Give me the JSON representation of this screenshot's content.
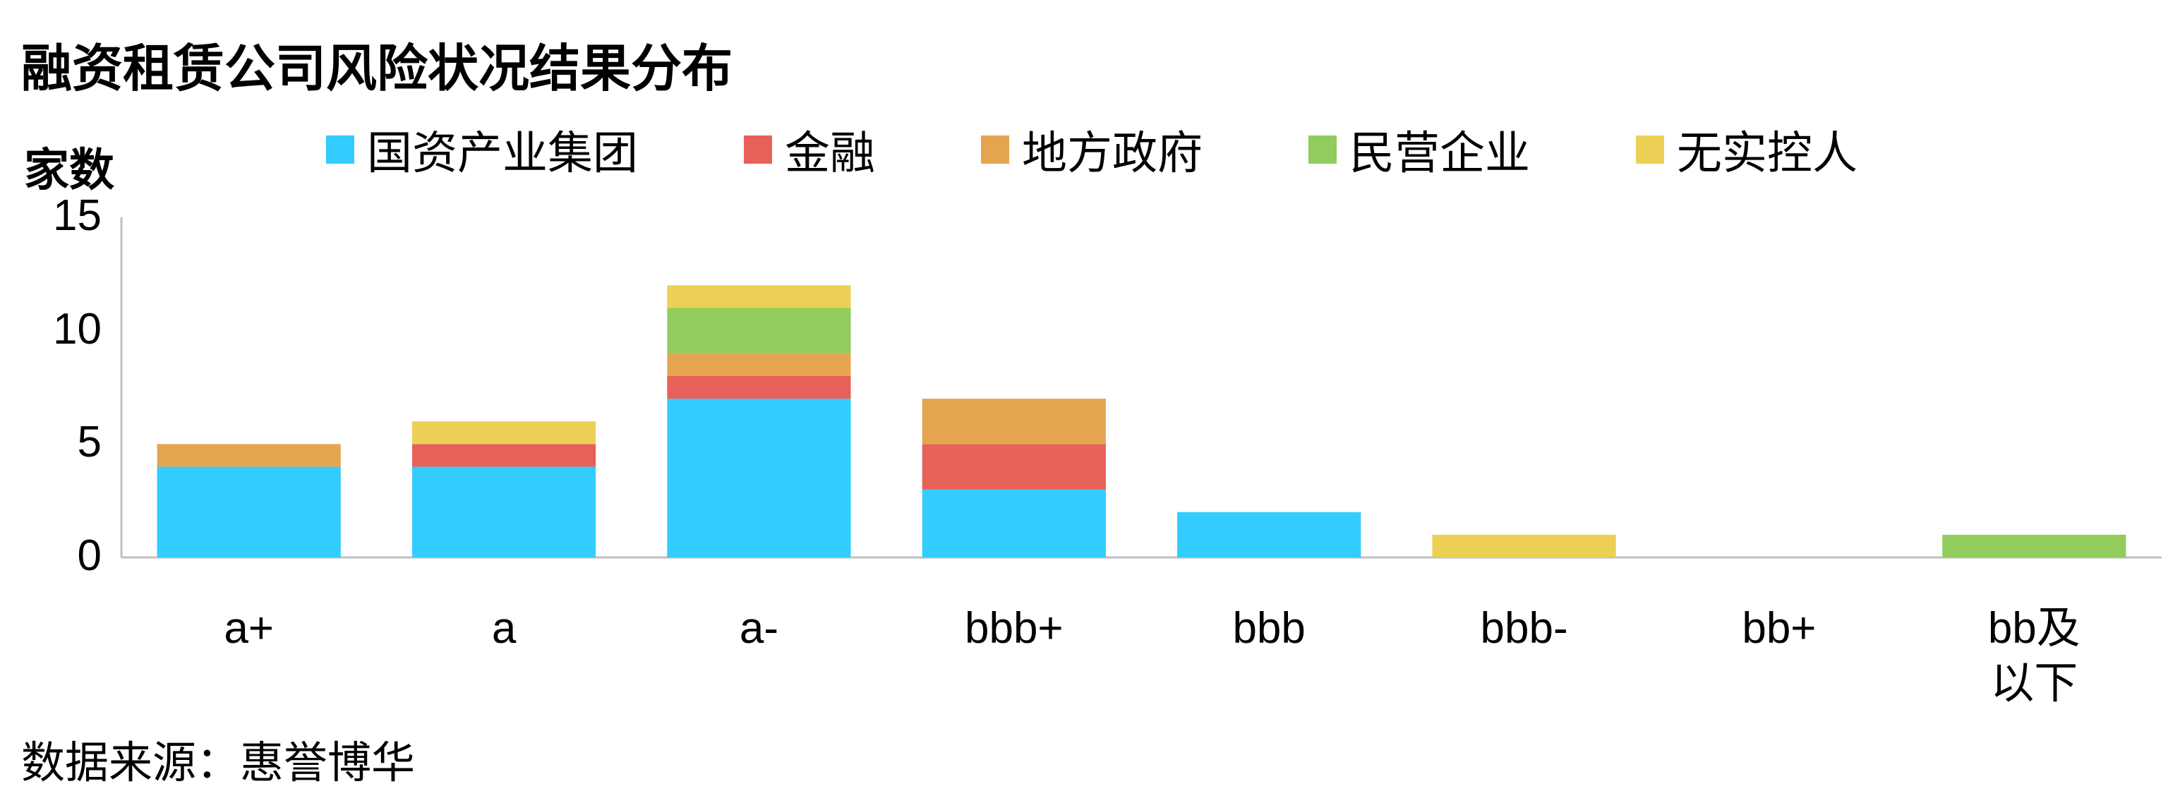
{
  "chart_data": {
    "type": "bar",
    "stacked": true,
    "title": "融资租赁公司风险状况结果分布",
    "y_label": "家数",
    "source": "数据来源：惠誉博华",
    "categories": [
      "a+",
      "a",
      "a-",
      "bbb+",
      "bbb",
      "bbb-",
      "bb+",
      "bb及以下"
    ],
    "series": [
      {
        "name": "国资产业集团",
        "color": "#33ccff",
        "values": [
          4,
          4,
          7,
          3,
          2,
          0,
          0,
          0
        ]
      },
      {
        "name": "金融",
        "color": "#e8605a",
        "values": [
          0,
          1,
          1,
          2,
          0,
          0,
          0,
          0
        ]
      },
      {
        "name": "地方政府",
        "color": "#e5a550",
        "values": [
          1,
          0,
          1,
          2,
          0,
          0,
          0,
          0
        ]
      },
      {
        "name": "民营企业",
        "color": "#92cc5c",
        "values": [
          0,
          0,
          2,
          0,
          0,
          0,
          0,
          1
        ]
      },
      {
        "name": "无实控人",
        "color": "#ebd055",
        "values": [
          0,
          1,
          1,
          0,
          0,
          1,
          0,
          0
        ]
      }
    ],
    "ylim": [
      0,
      15
    ],
    "yticks": [
      0,
      5,
      10,
      15
    ],
    "grid": false
  }
}
